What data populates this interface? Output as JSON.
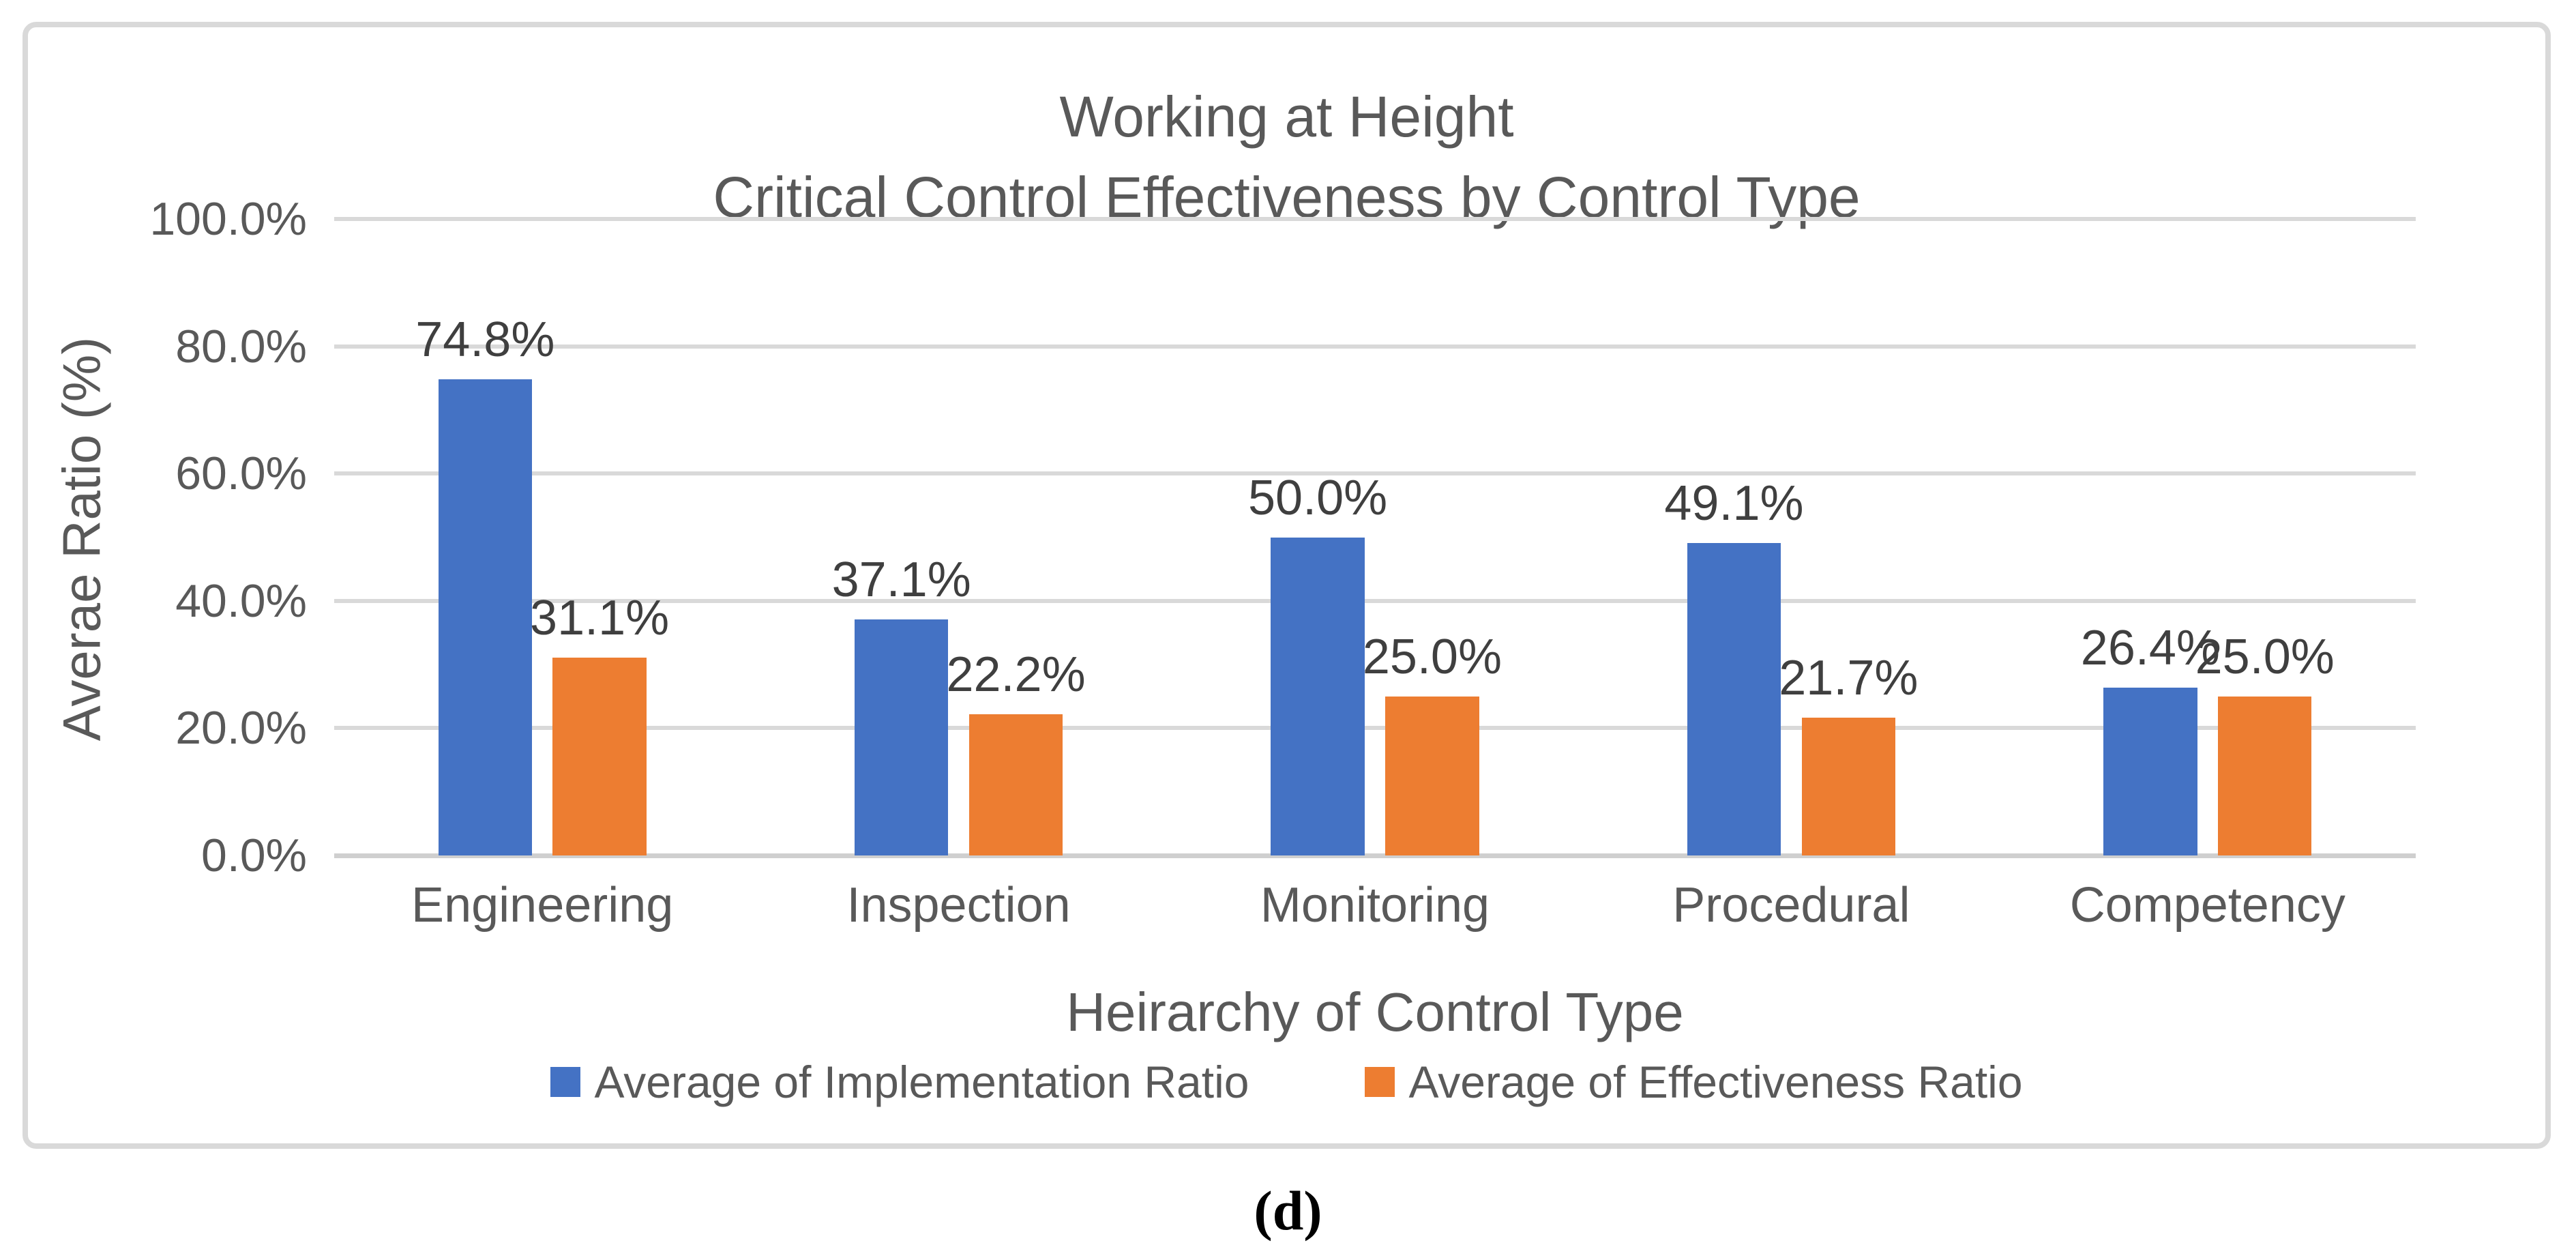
{
  "figure": {
    "caption": "(d)"
  },
  "chart": {
    "title_line1": "Working at Height",
    "title_line2": "Critical Control Effectiveness by Control Type",
    "y_axis_title": "Averae Ratio (%)",
    "x_axis_title": "Heirarchy of Control Type"
  },
  "colors": {
    "implementation_blue": "#4472C4",
    "effectiveness_orange": "#ED7D31",
    "gridline_gray": "#D9D9D9",
    "text_gray": "#595959",
    "data_label_gray": "#3F3F3F"
  },
  "chart_data": {
    "type": "bar",
    "title": "Working at Height Critical Control Effectiveness by Control Type",
    "xlabel": "Heirarchy of Control Type",
    "ylabel": "Averae Ratio (%)",
    "ylim": [
      0,
      100
    ],
    "yticks": [
      "100.0%",
      "80.0%",
      "60.0%",
      "40.0%",
      "20.0%",
      "0.0%"
    ],
    "grid": true,
    "legend_position": "bottom",
    "categories": [
      "Engineering",
      "Inspection",
      "Monitoring",
      "Procedural",
      "Competency"
    ],
    "series": [
      {
        "name": "Average of Implementation Ratio",
        "color": "#4472C4",
        "values": [
          74.8,
          37.1,
          50.0,
          49.1,
          26.4
        ],
        "labels": [
          "74.8%",
          "37.1%",
          "50.0%",
          "49.1%",
          "26.4%"
        ]
      },
      {
        "name": "Average of Effectiveness Ratio",
        "color": "#ED7D31",
        "values": [
          31.1,
          22.2,
          25.0,
          21.7,
          25.0
        ],
        "labels": [
          "31.1%",
          "22.2%",
          "25.0%",
          "21.7%",
          "25.0%"
        ]
      }
    ]
  }
}
